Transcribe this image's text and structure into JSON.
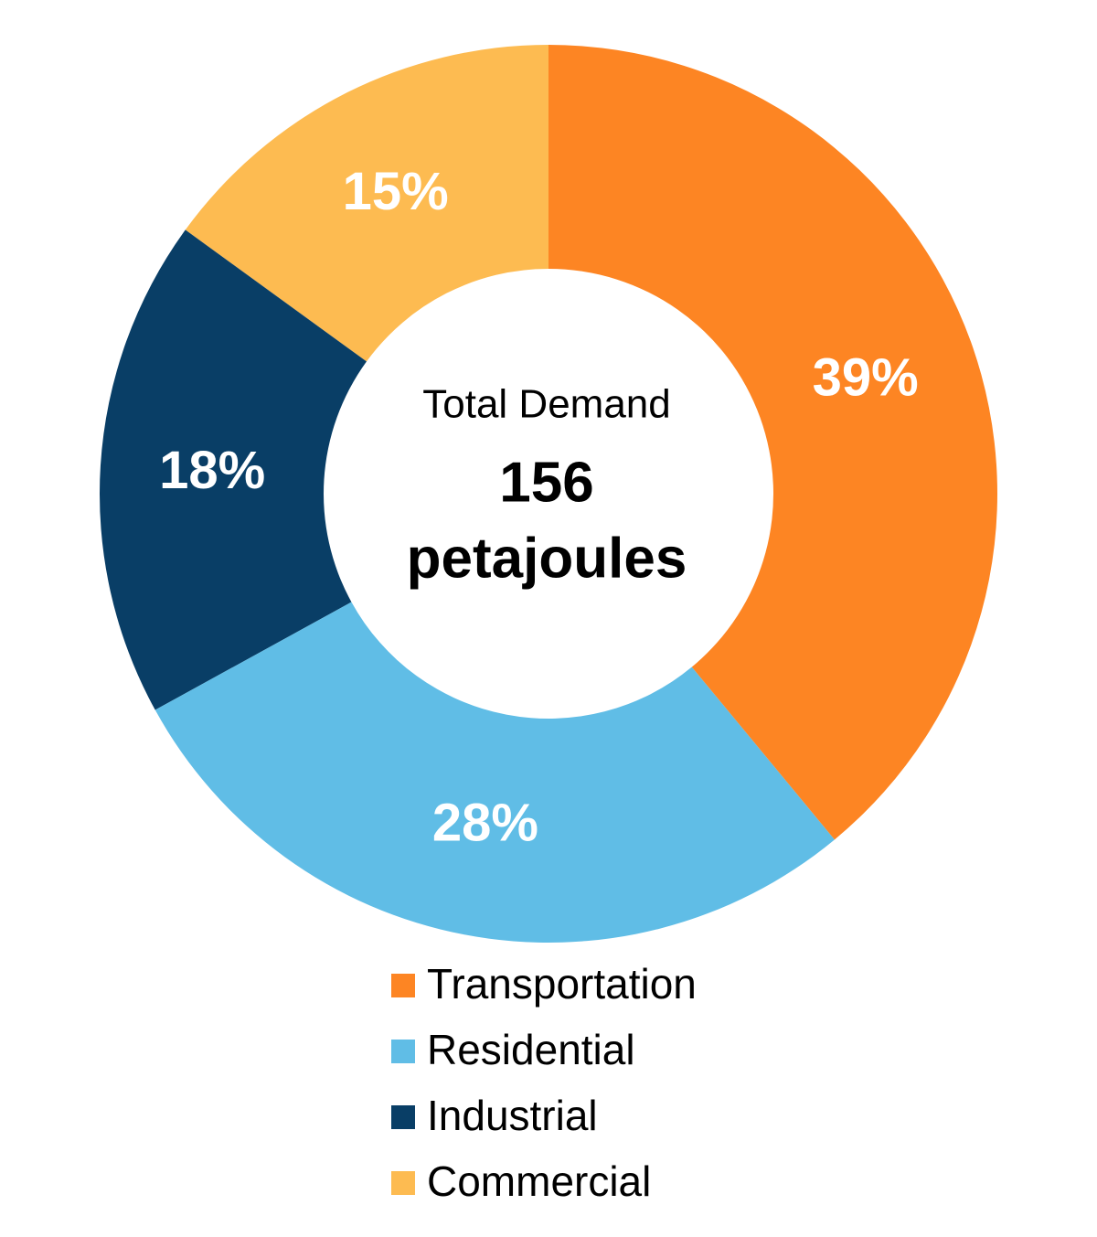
{
  "chart_data": {
    "type": "donut",
    "annotations": [
      "Total Demand",
      "156",
      "petajoules"
    ],
    "categories": [
      "Transportation",
      "Residential",
      "Industrial",
      "Commercial"
    ],
    "values": [
      39,
      28,
      18,
      15
    ],
    "value_labels": [
      "39%",
      "28%",
      "18%",
      "15%"
    ],
    "colors": [
      "#fd8523",
      "#60bde6",
      "#093e66",
      "#fdbb51"
    ],
    "legend": "bottom"
  }
}
